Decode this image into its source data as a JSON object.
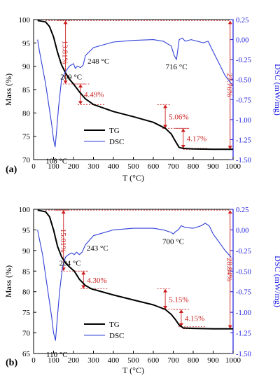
{
  "chart_data": [
    {
      "type": "line",
      "panel_label": "(a)",
      "xlabel": "T (°C)",
      "ylabel_left": "Mass (%)",
      "ylabel_right": "DSC (mW/mg)",
      "xlim": [
        0,
        1000
      ],
      "ylim_left": [
        70,
        100
      ],
      "ylim_right": [
        -1.5,
        0.25
      ],
      "x_ticks": [
        "0",
        "100",
        "200",
        "300",
        "400",
        "500",
        "600",
        "700",
        "800",
        "900",
        "1000"
      ],
      "y_ticks_left": [
        "70",
        "75",
        "80",
        "85",
        "90",
        "95",
        "100"
      ],
      "y_ticks_right": [
        "-1.50",
        "-1.25",
        "-1.00",
        "-0.75",
        "-0.50",
        "-0.25",
        "0.00",
        "0.25"
      ],
      "legend": {
        "placement": "bottom-left-center",
        "entries": [
          "TG",
          "DSC"
        ]
      },
      "colors": {
        "TG": "#000000",
        "DSC": "#3040d8",
        "annotation": "#cc2020",
        "right_axis": "#1a1ae0"
      },
      "series": [
        {
          "name": "TG",
          "axis": "left",
          "x": [
            20,
            60,
            80,
            100,
            120,
            140,
            160,
            180,
            200,
            230,
            260,
            300,
            400,
            500,
            600,
            660,
            690,
            710,
            730,
            750,
            800,
            900,
            1000
          ],
          "values": [
            99.8,
            99.5,
            98.5,
            96.3,
            93.0,
            90.3,
            88.6,
            87.2,
            86.2,
            84.5,
            83.0,
            81.8,
            80.3,
            79.2,
            78.0,
            76.7,
            75.5,
            74.0,
            72.6,
            72.4,
            72.3,
            72.2,
            72.2
          ]
        },
        {
          "name": "DSC",
          "axis": "right",
          "x": [
            20,
            30,
            45,
            60,
            75,
            90,
            100,
            108,
            115,
            125,
            140,
            160,
            180,
            200,
            209,
            220,
            235,
            248,
            260,
            300,
            400,
            500,
            600,
            650,
            690,
            705,
            716,
            730,
            745,
            760,
            790,
            820,
            850,
            875,
            890,
            920,
            960,
            1000
          ],
          "values": [
            0.0,
            -0.15,
            -0.35,
            -0.55,
            -0.8,
            -1.05,
            -1.25,
            -1.34,
            -1.15,
            -0.85,
            -0.5,
            -0.4,
            -0.33,
            -0.3,
            -0.36,
            -0.33,
            -0.35,
            -0.32,
            -0.2,
            -0.1,
            -0.03,
            -0.01,
            0.0,
            -0.02,
            -0.08,
            -0.2,
            -0.25,
            0.0,
            0.02,
            -0.02,
            0.0,
            -0.02,
            -0.04,
            -0.02,
            -0.1,
            -0.25,
            -0.45,
            -0.58
          ]
        }
      ],
      "annotations": [
        {
          "text": "108 °C",
          "x": 108,
          "y": -1.34,
          "axis": "right"
        },
        {
          "text": "209 °C",
          "x": 209,
          "y": -0.36,
          "axis": "right"
        },
        {
          "text": "248 °C",
          "x": 248,
          "y": -0.32,
          "axis": "right"
        },
        {
          "text": "716 °C",
          "x": 716,
          "y": -0.25,
          "axis": "right"
        },
        {
          "text": "13.81%",
          "x": 160,
          "from": 99.8,
          "to": 86.2
        },
        {
          "text": "4.49%",
          "x": 235,
          "from": 86.2,
          "to": 81.8
        },
        {
          "text": "5.06%",
          "x": 660,
          "from": 81.8,
          "to": 76.7
        },
        {
          "text": "4.17%",
          "x": 750,
          "from": 76.7,
          "to": 72.4
        },
        {
          "text": "27.76%",
          "x": 985,
          "from": 99.8,
          "to": 72.2
        }
      ]
    },
    {
      "type": "line",
      "panel_label": "(b)",
      "xlabel": "T (°C)",
      "ylabel_left": "Mass (%)",
      "ylabel_right": "DSC (mW/mg)",
      "xlim": [
        0,
        1000
      ],
      "ylim_left": [
        65,
        100
      ],
      "ylim_right": [
        -1.5,
        0.25
      ],
      "x_ticks": [
        "0",
        "100",
        "200",
        "300",
        "400",
        "500",
        "600",
        "700",
        "800",
        "900",
        "1000"
      ],
      "y_ticks_left": [
        "65",
        "70",
        "75",
        "80",
        "85",
        "90",
        "95",
        "100"
      ],
      "y_ticks_right": [
        "-1.50",
        "-1.25",
        "-1.00",
        "-0.75",
        "-0.50",
        "-0.25",
        "0.00",
        "0.25"
      ],
      "legend": {
        "placement": "bottom-left-center",
        "entries": [
          "TG",
          "DSC"
        ]
      },
      "colors": {
        "TG": "#000000",
        "DSC": "#3040d8",
        "annotation": "#cc2020",
        "right_axis": "#1a1ae0"
      },
      "series": [
        {
          "name": "TG",
          "axis": "left",
          "x": [
            20,
            60,
            80,
            100,
            120,
            140,
            160,
            180,
            204,
            230,
            260,
            290,
            400,
            500,
            600,
            660,
            690,
            710,
            730,
            750,
            800,
            900,
            1000
          ],
          "values": [
            99.8,
            99.4,
            98.2,
            95.0,
            91.0,
            88.5,
            87.0,
            86.0,
            85.0,
            83.0,
            81.5,
            80.7,
            79.2,
            78.0,
            76.8,
            75.7,
            74.5,
            73.3,
            71.9,
            71.2,
            71.1,
            71.0,
            71.0
          ]
        },
        {
          "name": "DSC",
          "axis": "right",
          "x": [
            20,
            30,
            45,
            60,
            75,
            90,
            100,
            110,
            118,
            130,
            145,
            160,
            175,
            190,
            204,
            215,
            230,
            243,
            260,
            300,
            400,
            500,
            600,
            650,
            690,
            700,
            712,
            725,
            740,
            760,
            800,
            840,
            860,
            880,
            900,
            930,
            960,
            990
          ],
          "values": [
            0.0,
            -0.12,
            -0.3,
            -0.55,
            -0.8,
            -1.05,
            -1.25,
            -1.34,
            -1.1,
            -0.75,
            -0.45,
            -0.33,
            -0.3,
            -0.28,
            -0.3,
            -0.27,
            -0.3,
            -0.27,
            -0.18,
            -0.07,
            0.0,
            0.02,
            0.02,
            0.0,
            -0.03,
            -0.05,
            -0.02,
            0.0,
            0.05,
            0.03,
            0.02,
            0.05,
            0.08,
            0.05,
            -0.05,
            -0.15,
            -0.25,
            -0.33
          ]
        }
      ],
      "annotations": [
        {
          "text": "110 °C",
          "x": 110,
          "y": -1.34,
          "axis": "right"
        },
        {
          "text": "204 °C",
          "x": 204,
          "y": -0.3,
          "axis": "right"
        },
        {
          "text": "243 °C",
          "x": 243,
          "y": -0.27,
          "axis": "right"
        },
        {
          "text": "700 °C",
          "x": 700,
          "y": -0.05,
          "axis": "right"
        },
        {
          "text": "15.01%",
          "x": 150,
          "from": 99.8,
          "to": 85.0
        },
        {
          "text": "4.30%",
          "x": 250,
          "from": 85.0,
          "to": 80.7
        },
        {
          "text": "5.15%",
          "x": 660,
          "from": 80.7,
          "to": 75.7
        },
        {
          "text": "4.15%",
          "x": 740,
          "from": 75.7,
          "to": 71.5
        },
        {
          "text": "28.84%",
          "x": 985,
          "from": 99.8,
          "to": 71.0
        }
      ]
    }
  ]
}
